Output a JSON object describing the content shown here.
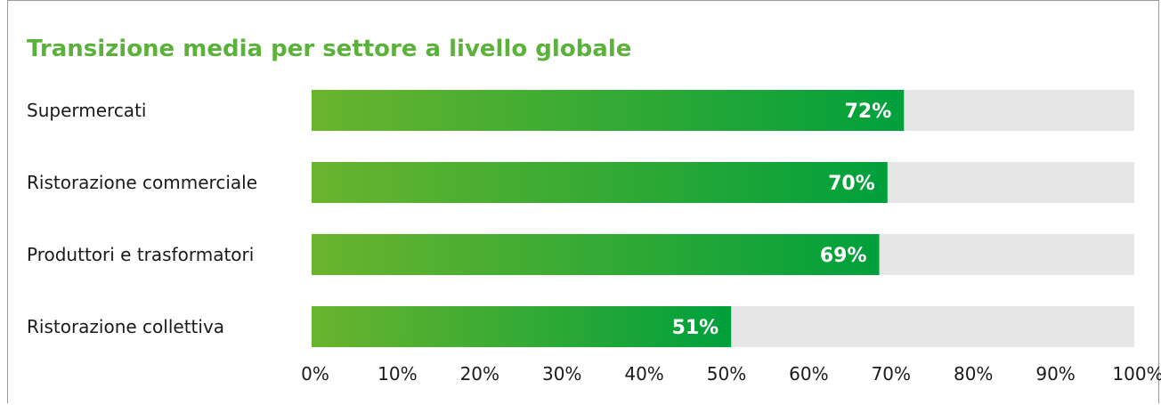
{
  "chart_data": {
    "type": "bar",
    "orientation": "horizontal",
    "title": "Transizione media per settore a livello globale",
    "categories": [
      "Supermercati",
      "Ristorazione commerciale",
      "Produttori e trasformatori",
      "Ristorazione collettiva"
    ],
    "values": [
      72,
      70,
      69,
      51
    ],
    "value_labels": [
      "72%",
      "70%",
      "69%",
      "51%"
    ],
    "xlim": [
      0,
      100
    ],
    "x_ticks": [
      "0%",
      "10%",
      "20%",
      "30%",
      "40%",
      "50%",
      "60%",
      "70%",
      "80%",
      "90%",
      "100%"
    ],
    "colors": {
      "bar_start": "#6ab42d",
      "bar_end": "#00a03c",
      "track": "#e6e6e6",
      "title": "#5bb23a",
      "value_text": "#ffffff"
    },
    "grid": false,
    "legend": "none"
  }
}
